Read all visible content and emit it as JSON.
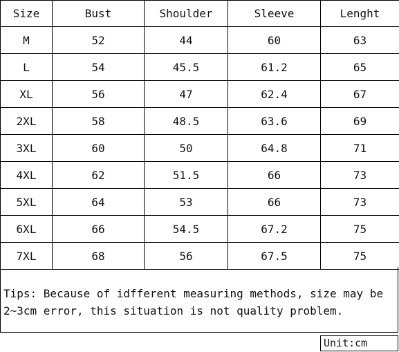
{
  "table": {
    "headers": [
      "Size",
      "Bust",
      "Shoulder",
      "Sleeve",
      "Lenght"
    ],
    "rows": [
      [
        "M",
        "52",
        "44",
        "60",
        "63"
      ],
      [
        "L",
        "54",
        "45.5",
        "61.2",
        "65"
      ],
      [
        "XL",
        "56",
        "47",
        "62.4",
        "67"
      ],
      [
        "2XL",
        "58",
        "48.5",
        "63.6",
        "69"
      ],
      [
        "3XL",
        "60",
        "50",
        "64.8",
        "71"
      ],
      [
        "4XL",
        "62",
        "51.5",
        "66",
        "73"
      ],
      [
        "5XL",
        "64",
        "53",
        "66",
        "73"
      ],
      [
        "6XL",
        "66",
        "54.5",
        "67.2",
        "75"
      ],
      [
        "7XL",
        "68",
        "56",
        "67.5",
        "75"
      ]
    ]
  },
  "tips": "Tips: Because of idfferent measuring methods, size may be 2~3cm error, this situation is not quality problem.",
  "unit": "Unit:cm"
}
